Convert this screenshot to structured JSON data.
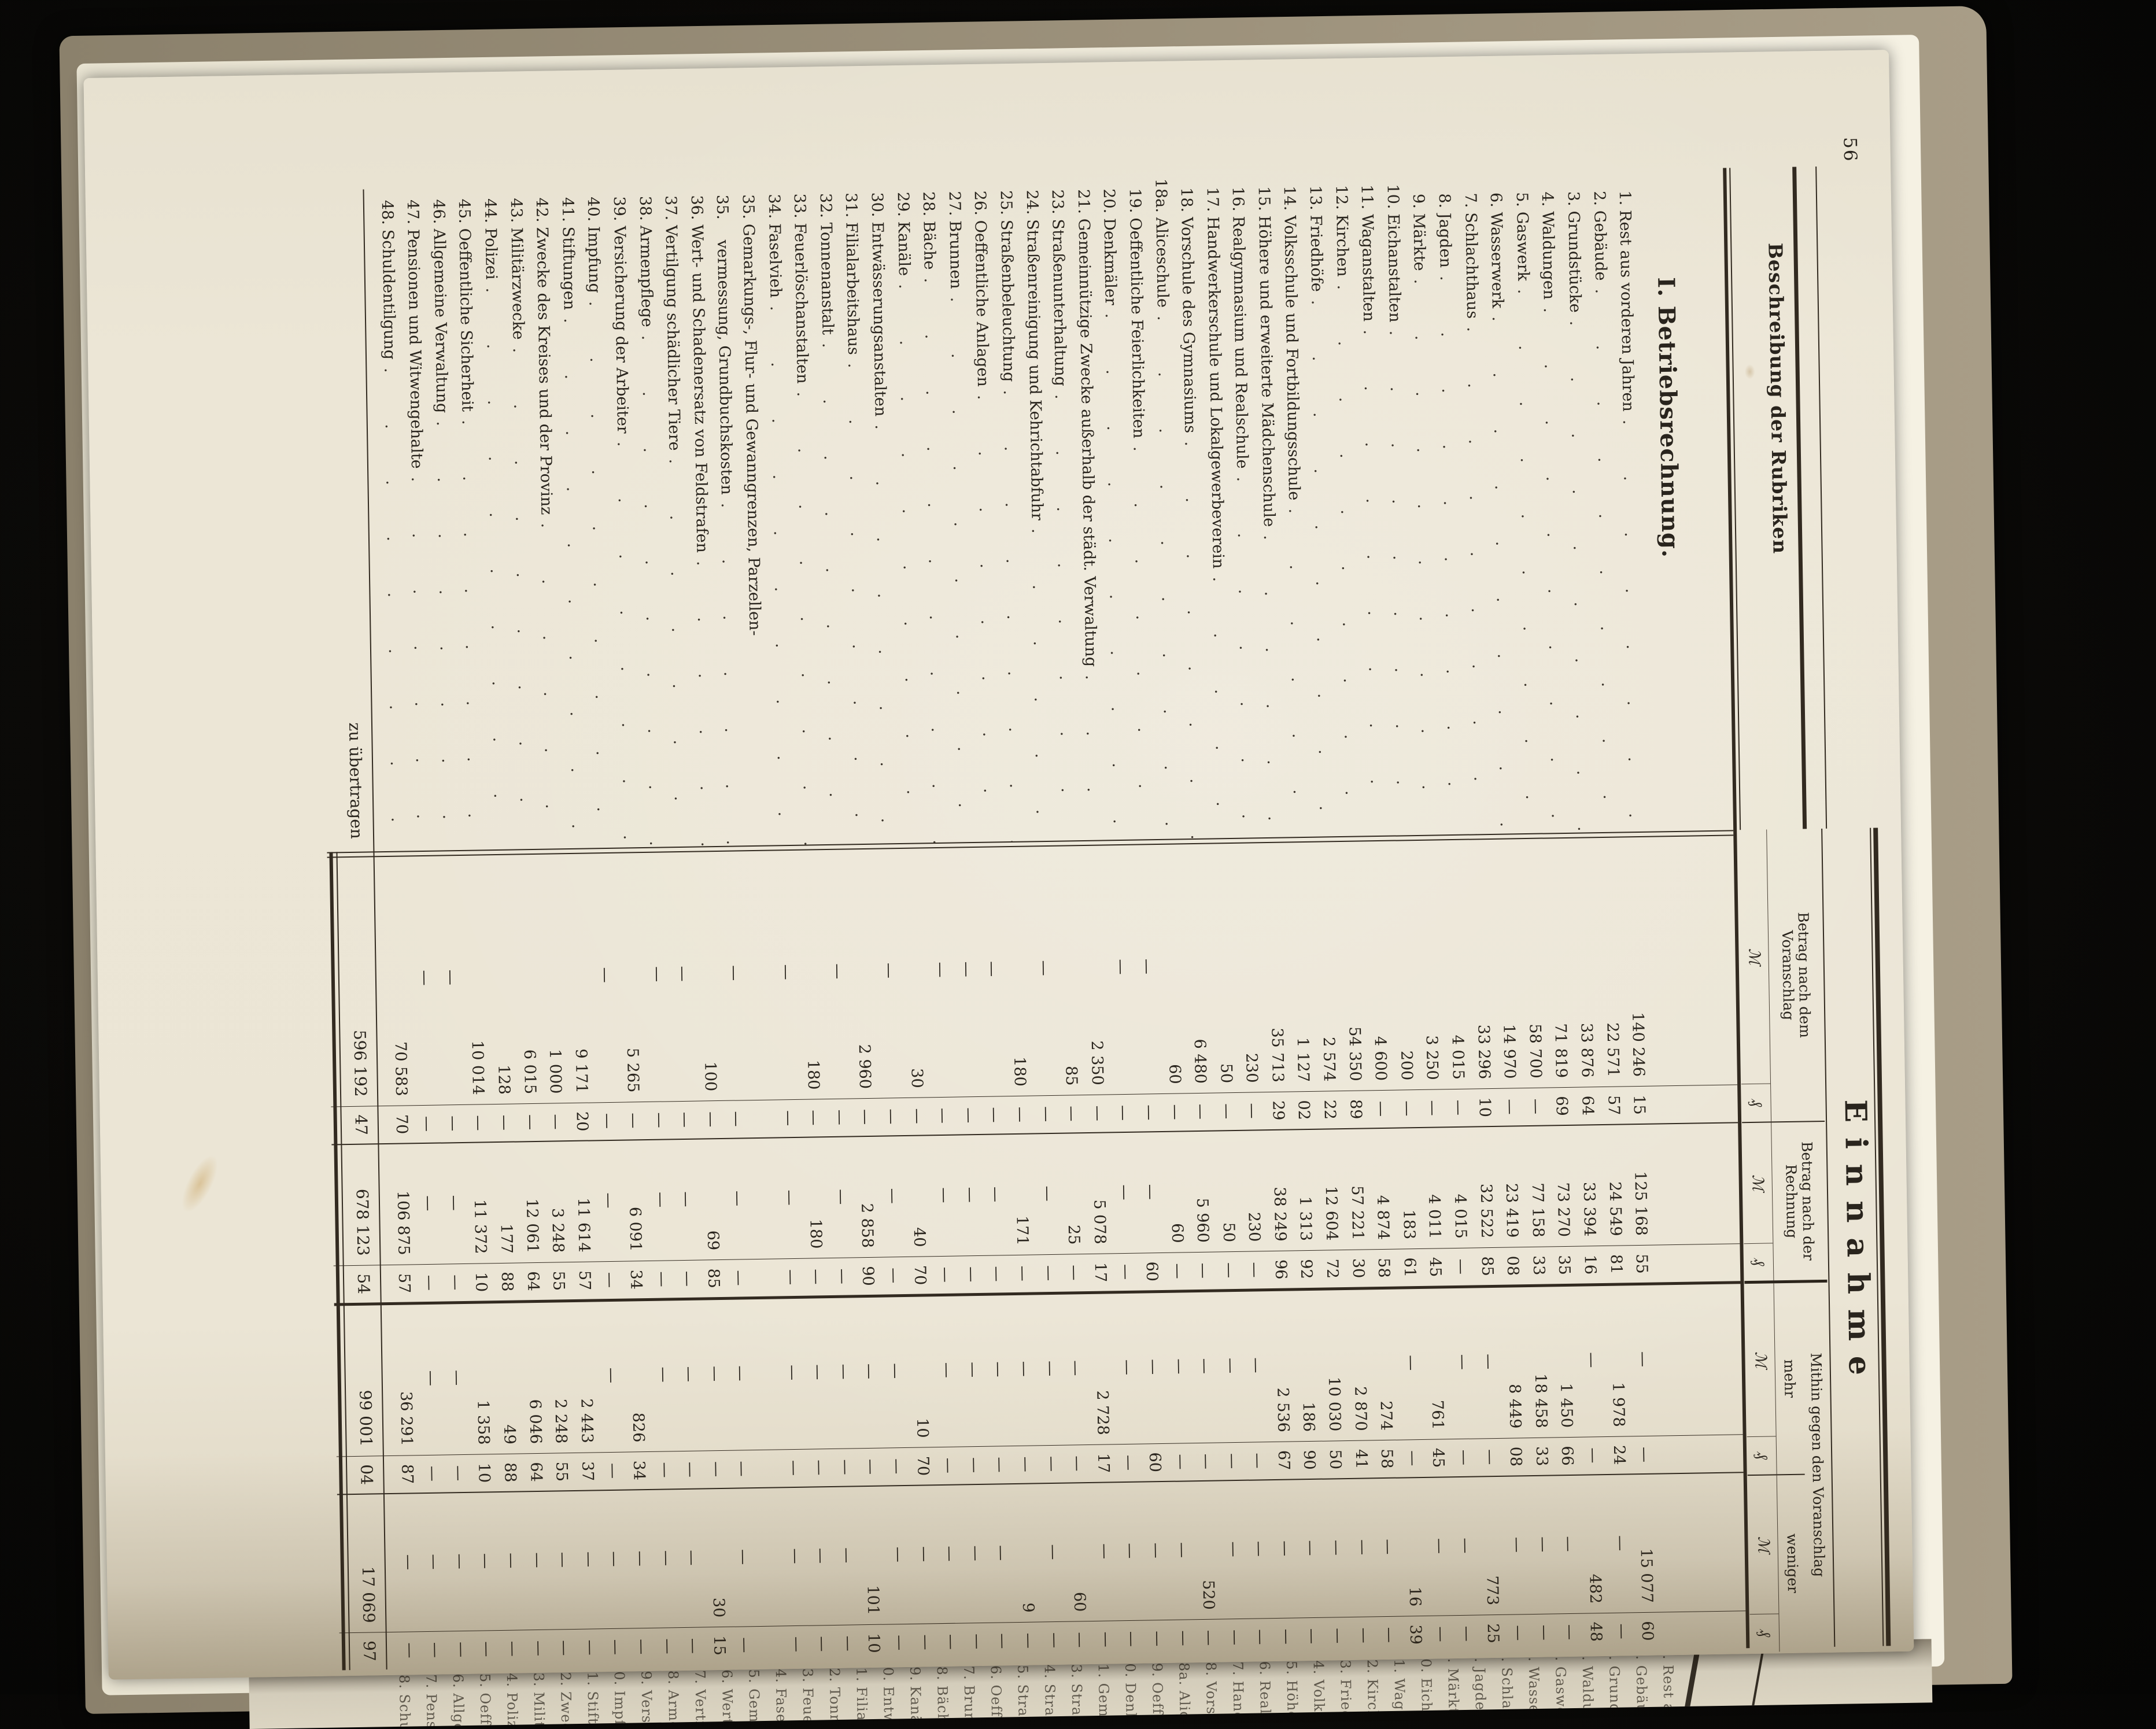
{
  "page": {
    "number": "56",
    "section_heading": "I. Betriebsrechnung.",
    "carry_label": "zu übertragen"
  },
  "table": {
    "label_col_header": "Beschreibung der Rubriken",
    "income_header": "Einnahme",
    "currency_mark": "ℳ",
    "currency_pfennig": "₰",
    "col_voranschlag_line1": "Betrag nach dem",
    "col_voranschlag_line2": "Voranschlag",
    "col_rechnung_line1": "Betrag nach der",
    "col_rechnung_line2": "Rechnung",
    "diff_header": "Mithin gegen den Voranschlag",
    "diff_more": "mehr",
    "diff_less": "weniger",
    "rows": [
      {
        "n": "1.",
        "l": "Rest aus vorderen Jahren",
        "v": [
          "140 246",
          "15"
        ],
        "r": [
          "125 168",
          "55"
        ],
        "m": [
          "—",
          "—"
        ],
        "w": [
          "15 077",
          "60"
        ]
      },
      {
        "n": "2.",
        "l": "Gebäude",
        "v": [
          "22 571",
          "57"
        ],
        "r": [
          "24 549",
          "81"
        ],
        "m": [
          "1 978",
          "24"
        ],
        "w": [
          "—",
          "—"
        ]
      },
      {
        "n": "3.",
        "l": "Grundstücke",
        "v": [
          "33 876",
          "64"
        ],
        "r": [
          "33 394",
          "16"
        ],
        "m": [
          "—",
          "—"
        ],
        "w": [
          "482",
          "48"
        ]
      },
      {
        "n": "4.",
        "l": "Waldungen",
        "v": [
          "71 819",
          "69"
        ],
        "r": [
          "73 270",
          "35"
        ],
        "m": [
          "1 450",
          "66"
        ],
        "w": [
          "—",
          "—"
        ]
      },
      {
        "n": "5.",
        "l": "Gaswerk",
        "v": [
          "58 700",
          "—"
        ],
        "r": [
          "77 158",
          "33"
        ],
        "m": [
          "18 458",
          "33"
        ],
        "w": [
          "—",
          "—"
        ]
      },
      {
        "n": "6.",
        "l": "Wasserwerk",
        "v": [
          "14 970",
          "—"
        ],
        "r": [
          "23 419",
          "08"
        ],
        "m": [
          "8 449",
          "08"
        ],
        "w": [
          "—",
          "—"
        ]
      },
      {
        "n": "7.",
        "l": "Schlachthaus",
        "v": [
          "33 296",
          "10"
        ],
        "r": [
          "32 522",
          "85"
        ],
        "m": [
          "—",
          "—"
        ],
        "w": [
          "773",
          "25"
        ]
      },
      {
        "n": "8.",
        "l": "Jagden",
        "v": [
          "4 015",
          "—"
        ],
        "r": [
          "4 015",
          "—"
        ],
        "m": [
          "—",
          "—"
        ],
        "w": [
          "—",
          "—"
        ]
      },
      {
        "n": "9.",
        "l": "Märkte",
        "v": [
          "3 250",
          "—"
        ],
        "r": [
          "4 011",
          "45"
        ],
        "m": [
          "761",
          "45"
        ],
        "w": [
          "—",
          "—"
        ]
      },
      {
        "n": "10.",
        "l": "Eichanstalten",
        "v": [
          "200",
          "—"
        ],
        "r": [
          "183",
          "61"
        ],
        "m": [
          "—",
          "—"
        ],
        "w": [
          "16",
          "39"
        ]
      },
      {
        "n": "11.",
        "l": "Waganstalten",
        "v": [
          "4 600",
          "—"
        ],
        "r": [
          "4 874",
          "58"
        ],
        "m": [
          "274",
          "58"
        ],
        "w": [
          "—",
          "—"
        ]
      },
      {
        "n": "12.",
        "l": "Kirchen",
        "v": [
          "54 350",
          "89"
        ],
        "r": [
          "57 221",
          "30"
        ],
        "m": [
          "2 870",
          "41"
        ],
        "w": [
          "—",
          "—"
        ]
      },
      {
        "n": "13.",
        "l": "Friedhöfe",
        "v": [
          "2 574",
          "22"
        ],
        "r": [
          "12 604",
          "72"
        ],
        "m": [
          "10 030",
          "50"
        ],
        "w": [
          "—",
          "—"
        ]
      },
      {
        "n": "14.",
        "l": "Volksschule und Fortbildungsschule",
        "v": [
          "1 127",
          "02"
        ],
        "r": [
          "1 313",
          "92"
        ],
        "m": [
          "186",
          "90"
        ],
        "w": [
          "—",
          "—"
        ]
      },
      {
        "n": "15.",
        "l": "Höhere und erweiterte Mädchenschule",
        "v": [
          "35 713",
          "29"
        ],
        "r": [
          "38 249",
          "96"
        ],
        "m": [
          "2 536",
          "67"
        ],
        "w": [
          "—",
          "—"
        ]
      },
      {
        "n": "16.",
        "l": "Realgymnasium und Realschule",
        "v": [
          "230",
          "—"
        ],
        "r": [
          "230",
          "—"
        ],
        "m": [
          "—",
          "—"
        ],
        "w": [
          "—",
          "—"
        ]
      },
      {
        "n": "17.",
        "l": "Handwerkerschule und Lokalgewerbeverein",
        "v": [
          "50",
          "—"
        ],
        "r": [
          "50",
          "—"
        ],
        "m": [
          "—",
          "—"
        ],
        "w": [
          "—",
          "—"
        ]
      },
      {
        "n": "18.",
        "l": "Vorschule des Gymnasiums",
        "v": [
          "6 480",
          "—"
        ],
        "r": [
          "5 960",
          "—"
        ],
        "m": [
          "—",
          "—"
        ],
        "w": [
          "520",
          "—"
        ]
      },
      {
        "n": "18a.",
        "l": "Aliceschule",
        "v": [
          "60",
          "—"
        ],
        "r": [
          "60",
          "—"
        ],
        "m": [
          "—",
          "—"
        ],
        "w": [
          "—",
          "—"
        ]
      },
      {
        "n": "19.",
        "l": "Oeffentliche Feierlichkeiten",
        "v": [
          "—",
          "—"
        ],
        "r": [
          "—",
          "60"
        ],
        "m": [
          "—",
          "60"
        ],
        "w": [
          "—",
          "—"
        ]
      },
      {
        "n": "20.",
        "l": "Denkmäler",
        "v": [
          "—",
          "—"
        ],
        "r": [
          "—",
          "—"
        ],
        "m": [
          "—",
          "—"
        ],
        "w": [
          "—",
          "—"
        ]
      },
      {
        "n": "21.",
        "l": "Gemeinnützige Zwecke außerhalb der städt. Verwaltung",
        "v": [
          "2 350",
          "—"
        ],
        "r": [
          "5 078",
          "17"
        ],
        "m": [
          "2 728",
          "17"
        ],
        "w": [
          "—",
          "—"
        ]
      },
      {
        "n": "23.",
        "l": "Straßenunterhaltung",
        "v": [
          "85",
          "—"
        ],
        "r": [
          "25",
          "—"
        ],
        "m": [
          "—",
          "—"
        ],
        "w": [
          "60",
          "—"
        ]
      },
      {
        "n": "24.",
        "l": "Straßenreinigung und Kehrichtabfuhr",
        "v": [
          "—",
          "—"
        ],
        "r": [
          "—",
          "—"
        ],
        "m": [
          "—",
          "—"
        ],
        "w": [
          "—",
          "—"
        ]
      },
      {
        "n": "25.",
        "l": "Straßenbeleuchtung",
        "v": [
          "180",
          "—"
        ],
        "r": [
          "171",
          "—"
        ],
        "m": [
          "—",
          "—"
        ],
        "w": [
          "9",
          "—"
        ]
      },
      {
        "n": "26.",
        "l": "Oeffentliche Anlagen",
        "v": [
          "—",
          "—"
        ],
        "r": [
          "—",
          "—"
        ],
        "m": [
          "—",
          "—"
        ],
        "w": [
          "—",
          "—"
        ]
      },
      {
        "n": "27.",
        "l": "Brunnen",
        "v": [
          "—",
          "—"
        ],
        "r": [
          "—",
          "—"
        ],
        "m": [
          "—",
          "—"
        ],
        "w": [
          "—",
          "—"
        ]
      },
      {
        "n": "28.",
        "l": "Bäche",
        "v": [
          "—",
          "—"
        ],
        "r": [
          "—",
          "—"
        ],
        "m": [
          "—",
          "—"
        ],
        "w": [
          "—",
          "—"
        ]
      },
      {
        "n": "29.",
        "l": "Kanäle",
        "v": [
          "30",
          "—"
        ],
        "r": [
          "40",
          "70"
        ],
        "m": [
          "10",
          "70"
        ],
        "w": [
          "—",
          "—"
        ]
      },
      {
        "n": "30.",
        "l": "Entwässerungsanstalten",
        "v": [
          "—",
          "—"
        ],
        "r": [
          "—",
          "—"
        ],
        "m": [
          "—",
          "—"
        ],
        "w": [
          "—",
          "—"
        ]
      },
      {
        "n": "31.",
        "l": "Filialarbeitshaus",
        "v": [
          "2 960",
          "—"
        ],
        "r": [
          "2 858",
          "90"
        ],
        "m": [
          "—",
          "—"
        ],
        "w": [
          "101",
          "10"
        ]
      },
      {
        "n": "32.",
        "l": "Tonnenanstalt",
        "v": [
          "—",
          "—"
        ],
        "r": [
          "—",
          "—"
        ],
        "m": [
          "—",
          "—"
        ],
        "w": [
          "—",
          "—"
        ]
      },
      {
        "n": "33.",
        "l": "Feuerlöschanstalten",
        "v": [
          "180",
          "—"
        ],
        "r": [
          "180",
          "—"
        ],
        "m": [
          "—",
          "—"
        ],
        "w": [
          "—",
          "—"
        ]
      },
      {
        "n": "34.",
        "l": "Faselvieh",
        "v": [
          "—",
          "—"
        ],
        "r": [
          "—",
          "—"
        ],
        "m": [
          "—",
          "—"
        ],
        "w": [
          "—",
          "—"
        ]
      },
      {
        "n": "35.",
        "l": "Gemarkungs-, Flur- und Gewanngrenzen, Parzellen-",
        "l2": "vermessung, Grundbuchskosten",
        "v": [
          "—",
          "—"
        ],
        "r": [
          "—",
          "—"
        ],
        "m": [
          "—",
          "—"
        ],
        "w": [
          "—",
          "—"
        ]
      },
      {
        "n": "36.",
        "l": "Wert- und Schadenersatz von Feldstrafen",
        "v": [
          "100",
          "—"
        ],
        "r": [
          "69",
          "85"
        ],
        "m": [
          "—",
          "—"
        ],
        "w": [
          "30",
          "15"
        ]
      },
      {
        "n": "37.",
        "l": "Vertilgung schädlicher Tiere",
        "v": [
          "—",
          "—"
        ],
        "r": [
          "—",
          "—"
        ],
        "m": [
          "—",
          "—"
        ],
        "w": [
          "—",
          "—"
        ]
      },
      {
        "n": "38.",
        "l": "Armenpflege",
        "v": [
          "—",
          "—"
        ],
        "r": [
          "—",
          "—"
        ],
        "m": [
          "—",
          "—"
        ],
        "w": [
          "—",
          "—"
        ]
      },
      {
        "n": "39.",
        "l": "Versicherung der Arbeiter",
        "v": [
          "5 265",
          "—"
        ],
        "r": [
          "6 091",
          "34"
        ],
        "m": [
          "826",
          "34"
        ],
        "w": [
          "—",
          "—"
        ]
      },
      {
        "n": "40.",
        "l": "Impfung",
        "v": [
          "—",
          "—"
        ],
        "r": [
          "—",
          "—"
        ],
        "m": [
          "—",
          "—"
        ],
        "w": [
          "—",
          "—"
        ]
      },
      {
        "n": "41.",
        "l": "Stiftungen",
        "v": [
          "9 171",
          "20"
        ],
        "r": [
          "11 614",
          "57"
        ],
        "m": [
          "2 443",
          "37"
        ],
        "w": [
          "—",
          "—"
        ]
      },
      {
        "n": "42.",
        "l": "Zwecke des Kreises und der Provinz",
        "v": [
          "1 000",
          "—"
        ],
        "r": [
          "3 248",
          "55"
        ],
        "m": [
          "2 248",
          "55"
        ],
        "w": [
          "—",
          "—"
        ]
      },
      {
        "n": "43.",
        "l": "Militärzwecke",
        "v": [
          "6 015",
          "—"
        ],
        "r": [
          "12 061",
          "64"
        ],
        "m": [
          "6 046",
          "64"
        ],
        "w": [
          "—",
          "—"
        ]
      },
      {
        "n": "44.",
        "l": "Polizei",
        "v": [
          "128",
          "—"
        ],
        "r": [
          "177",
          "88"
        ],
        "m": [
          "49",
          "88"
        ],
        "w": [
          "—",
          "—"
        ]
      },
      {
        "n": "45.",
        "l": "Oeffentliche Sicherheit",
        "v": [
          "10 014",
          "—"
        ],
        "r": [
          "11 372",
          "10"
        ],
        "m": [
          "1 358",
          "10"
        ],
        "w": [
          "—",
          "—"
        ]
      },
      {
        "n": "46.",
        "l": "Allgemeine Verwaltung",
        "v": [
          "—",
          "—"
        ],
        "r": [
          "—",
          "—"
        ],
        "m": [
          "—",
          "—"
        ],
        "w": [
          "—",
          "—"
        ]
      },
      {
        "n": "47.",
        "l": "Pensionen und Witwengehalte",
        "v": [
          "—",
          "—"
        ],
        "r": [
          "—",
          "—"
        ],
        "m": [
          "—",
          "—"
        ],
        "w": [
          "—",
          "—"
        ]
      },
      {
        "n": "48.",
        "l": "Schuldentilgung",
        "v": [
          "70 583",
          "70"
        ],
        "r": [
          "106 875",
          "57"
        ],
        "m": [
          "36 291",
          "87"
        ],
        "w": [
          "—",
          "—"
        ]
      }
    ],
    "totals": {
      "n": "",
      "l": "zu übertragen",
      "v": [
        "596 192",
        "47"
      ],
      "r": [
        "678 123",
        "54"
      ],
      "m": [
        "99 001",
        "04"
      ],
      "w": [
        "17 069",
        "97"
      ]
    }
  },
  "colors": {
    "paper": "#eae4d4",
    "ink": "#29241d",
    "cover_tan": "#9d927c",
    "backdrop": "#0b0a08"
  }
}
